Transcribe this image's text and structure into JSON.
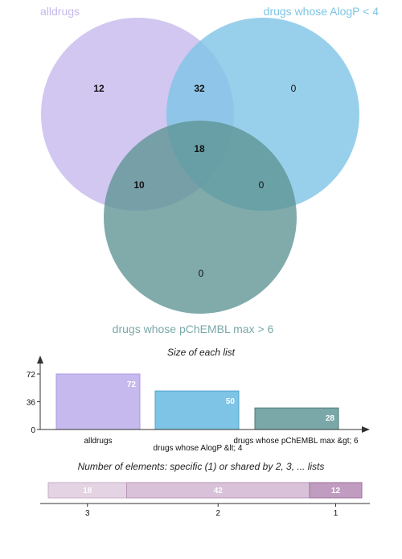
{
  "venn": {
    "sets": [
      {
        "label": "alldrugs",
        "color": "#c6b9ee",
        "label_color": "#c6b9ee"
      },
      {
        "label": "drugs whose AlogP < 4",
        "color": "#7ec4e6",
        "label_color": "#7ec4e6"
      },
      {
        "label": "drugs whose pChEMBL max > 6",
        "color": "#7aa8a8",
        "label_color": "#7aa8a8"
      }
    ],
    "regions": {
      "only_all": "12",
      "all_alogp": "32",
      "only_alogp": "0",
      "all_three": "18",
      "all_pchembl": "10",
      "alogp_pchembl": "0",
      "only_pchembl": "0"
    }
  },
  "chart_data": [
    {
      "type": "bar",
      "title": "Size of each list",
      "categories": [
        "alldrugs",
        "drugs whose AlogP &lt; 4",
        "drugs whose pChEMBL max &gt; 6"
      ],
      "values": [
        72,
        50,
        28
      ],
      "colors": [
        "#c6b9ee",
        "#7ec4e6",
        "#7aa8a8"
      ],
      "yticks": [
        0,
        36,
        72
      ],
      "ylim": [
        0,
        72
      ]
    },
    {
      "type": "bar",
      "orientation": "horizontal-stacked",
      "title": "Number of elements: specific (1) or shared by 2, 3, ... lists",
      "categories": [
        "3",
        "2",
        "1"
      ],
      "values": [
        18,
        42,
        12
      ],
      "colors": [
        "#e3d3e3",
        "#d9c2d9",
        "#c09cc0"
      ]
    }
  ]
}
